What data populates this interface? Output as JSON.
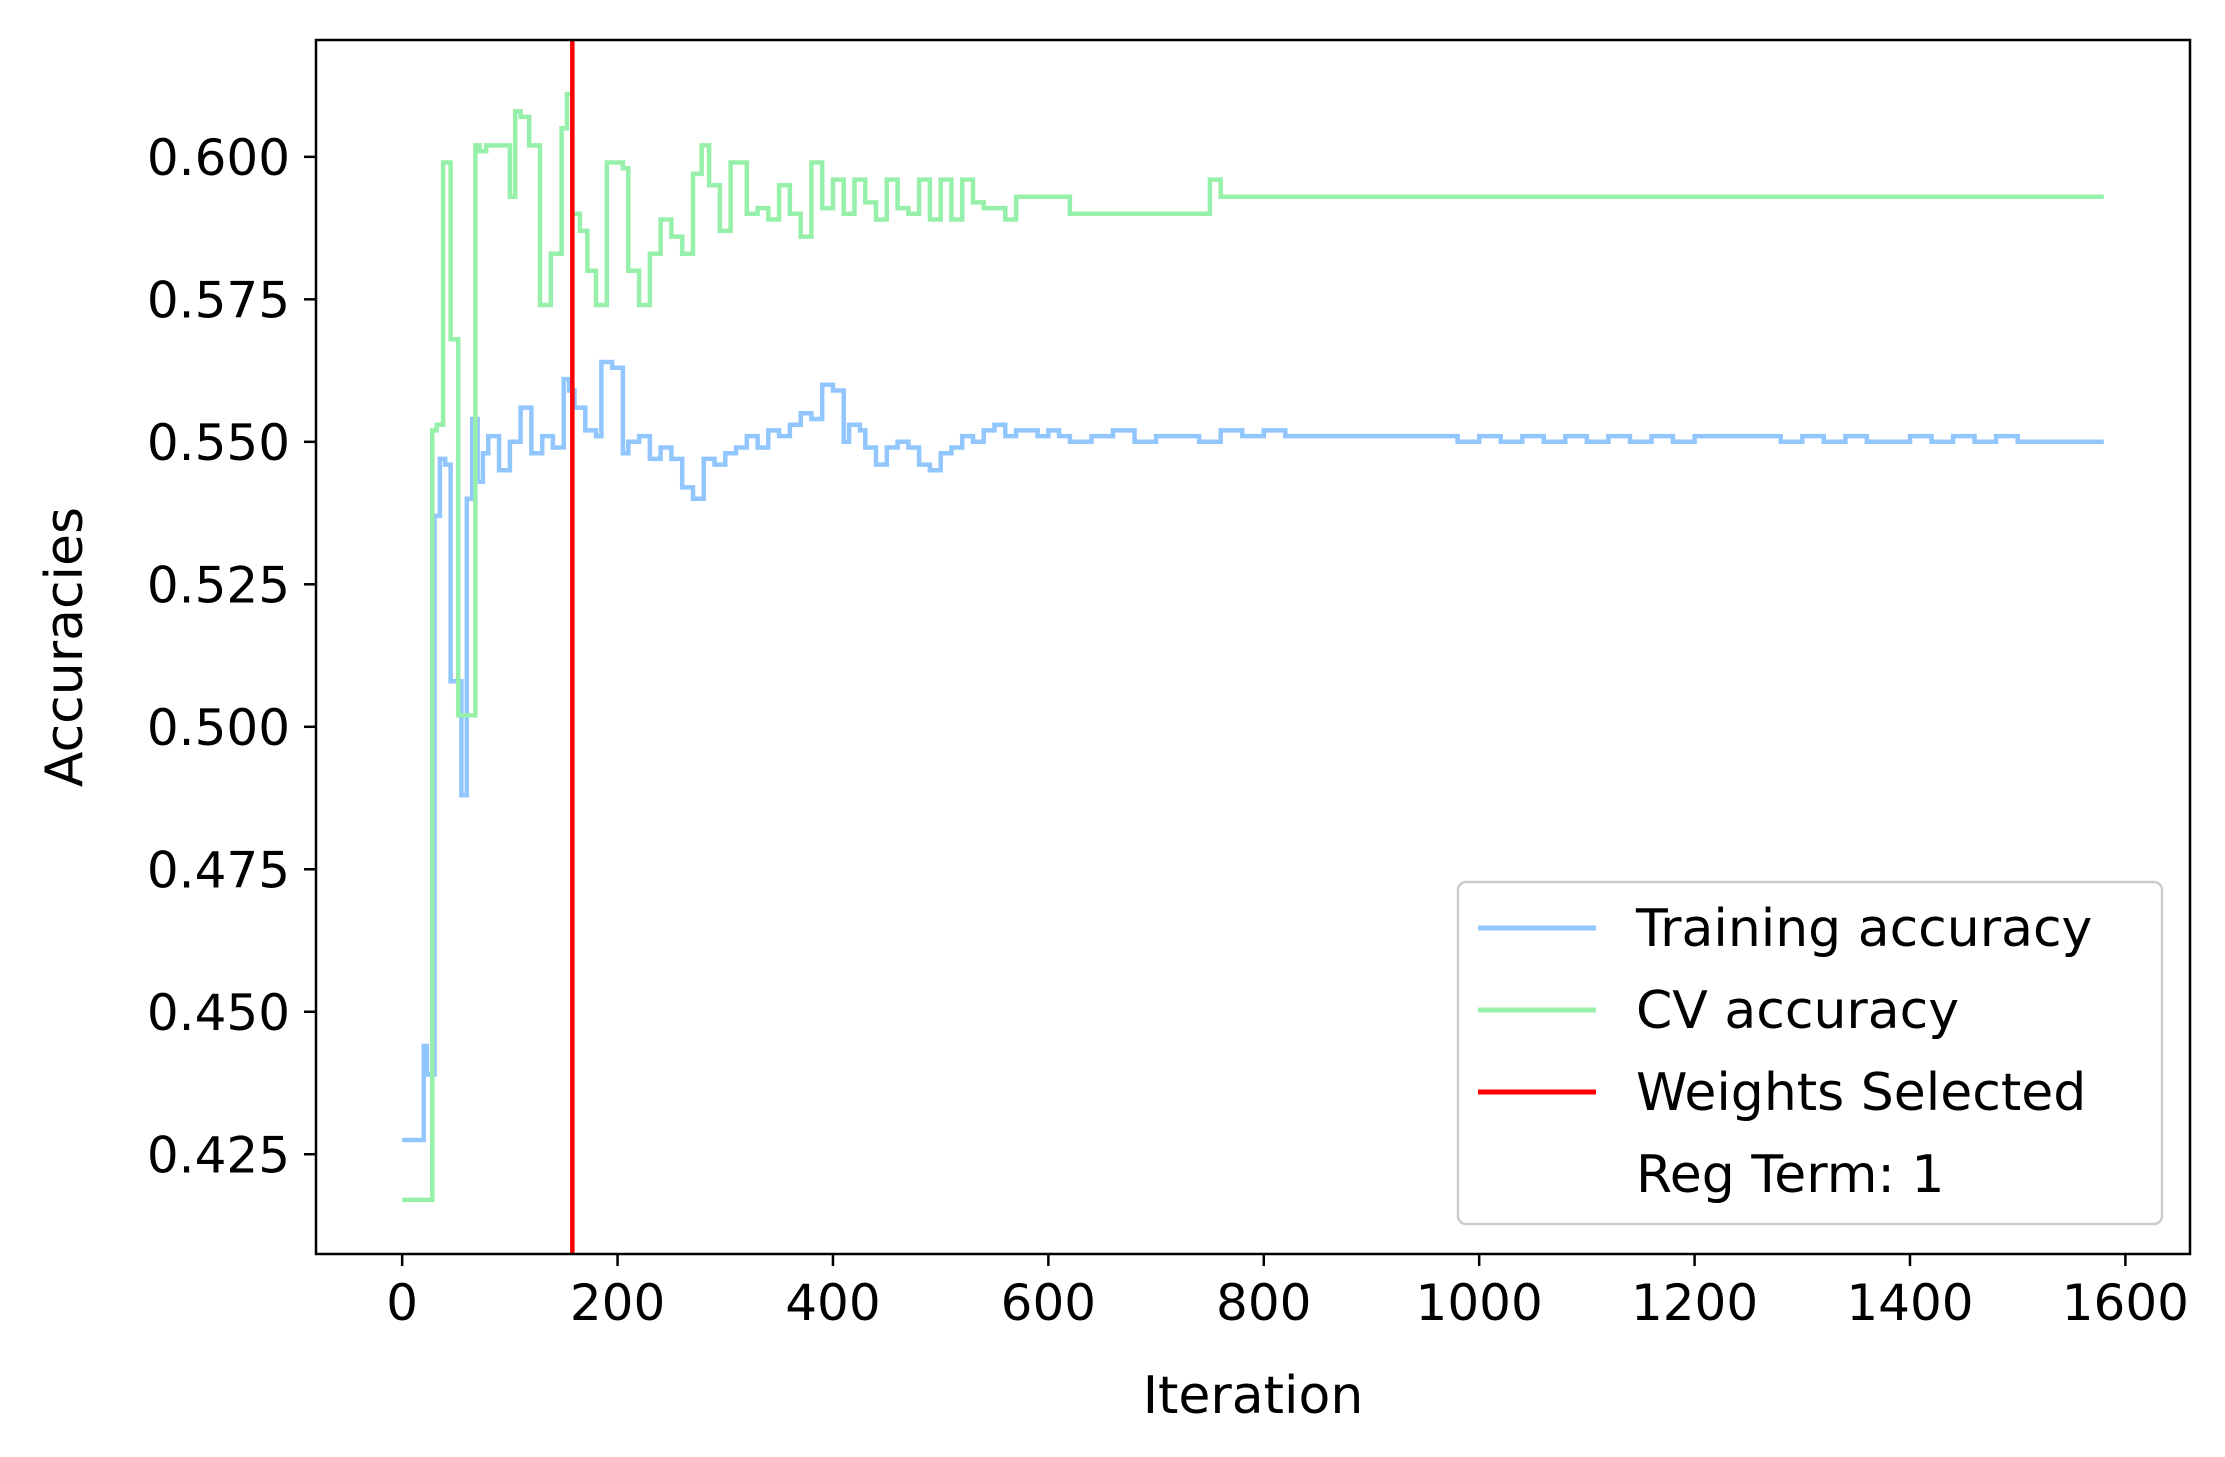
{
  "chart_data": {
    "type": "line",
    "xlabel": "Iteration",
    "ylabel": "Accuracies",
    "xlim": [
      -80,
      1660
    ],
    "ylim": [
      0.4075,
      0.6205
    ],
    "xticks": [
      0,
      200,
      400,
      600,
      800,
      1000,
      1200,
      1400,
      1600
    ],
    "xtick_labels": [
      "0",
      "200",
      "400",
      "600",
      "800",
      "1000",
      "1200",
      "1400",
      "1600"
    ],
    "yticks": [
      0.425,
      0.45,
      0.475,
      0.5,
      0.525,
      0.55,
      0.575,
      0.6
    ],
    "ytick_labels": [
      "0.425",
      "0.450",
      "0.475",
      "0.500",
      "0.525",
      "0.550",
      "0.575",
      "0.600"
    ],
    "grid": false,
    "legend_position": "lower-right",
    "series": [
      {
        "name": "Training accuracy",
        "color": "#92c6ff",
        "step": true,
        "x": [
          0,
          20,
          23,
          30,
          35,
          40,
          45,
          55,
          60,
          65,
          70,
          75,
          80,
          90,
          100,
          110,
          120,
          130,
          140,
          150,
          155,
          160,
          170,
          180,
          185,
          195,
          205,
          210,
          220,
          230,
          240,
          250,
          260,
          270,
          280,
          290,
          300,
          310,
          320,
          330,
          340,
          350,
          360,
          370,
          380,
          390,
          400,
          410,
          415,
          425,
          430,
          440,
          450,
          460,
          470,
          480,
          490,
          500,
          510,
          520,
          530,
          540,
          550,
          560,
          570,
          580,
          590,
          600,
          610,
          620,
          640,
          660,
          680,
          700,
          720,
          740,
          760,
          780,
          800,
          820,
          860,
          880,
          980,
          1000,
          1020,
          1040,
          1060,
          1080,
          1100,
          1120,
          1140,
          1160,
          1180,
          1200,
          1260,
          1280,
          1300,
          1320,
          1340,
          1360,
          1400,
          1420,
          1440,
          1460,
          1480,
          1500,
          1520,
          1580
        ],
        "y": [
          0.4275,
          0.444,
          0.439,
          0.537,
          0.547,
          0.546,
          0.508,
          0.488,
          0.54,
          0.554,
          0.543,
          0.548,
          0.551,
          0.545,
          0.55,
          0.556,
          0.548,
          0.551,
          0.549,
          0.561,
          0.559,
          0.556,
          0.552,
          0.551,
          0.564,
          0.563,
          0.548,
          0.55,
          0.551,
          0.547,
          0.549,
          0.547,
          0.542,
          0.54,
          0.547,
          0.546,
          0.548,
          0.549,
          0.551,
          0.549,
          0.552,
          0.551,
          0.553,
          0.555,
          0.554,
          0.56,
          0.559,
          0.55,
          0.553,
          0.552,
          0.549,
          0.546,
          0.549,
          0.55,
          0.549,
          0.546,
          0.545,
          0.548,
          0.549,
          0.551,
          0.55,
          0.552,
          0.553,
          0.551,
          0.552,
          0.552,
          0.551,
          0.552,
          0.551,
          0.55,
          0.551,
          0.552,
          0.55,
          0.551,
          0.551,
          0.55,
          0.552,
          0.551,
          0.552,
          0.551,
          0.551,
          0.551,
          0.55,
          0.551,
          0.55,
          0.551,
          0.55,
          0.551,
          0.55,
          0.551,
          0.55,
          0.551,
          0.55,
          0.551,
          0.551,
          0.55,
          0.551,
          0.55,
          0.551,
          0.55,
          0.551,
          0.55,
          0.551,
          0.55,
          0.551,
          0.55,
          0.55,
          0.55
        ]
      },
      {
        "name": "CV accuracy",
        "color": "#97f0aa",
        "step": true,
        "x": [
          0,
          20,
          28,
          32,
          38,
          45,
          52,
          62,
          68,
          72,
          78,
          90,
          100,
          105,
          110,
          118,
          128,
          138,
          148,
          153,
          158,
          165,
          172,
          180,
          190,
          200,
          205,
          210,
          220,
          230,
          240,
          250,
          260,
          270,
          278,
          285,
          295,
          305,
          320,
          330,
          340,
          350,
          360,
          370,
          380,
          390,
          400,
          410,
          420,
          430,
          440,
          450,
          460,
          470,
          480,
          490,
          500,
          510,
          520,
          530,
          540,
          560,
          570,
          600,
          620,
          750,
          760,
          1580
        ],
        "y": [
          0.417,
          0.417,
          0.552,
          0.553,
          0.599,
          0.568,
          0.502,
          0.502,
          0.602,
          0.601,
          0.602,
          0.602,
          0.593,
          0.608,
          0.607,
          0.602,
          0.574,
          0.583,
          0.605,
          0.611,
          0.59,
          0.587,
          0.58,
          0.574,
          0.599,
          0.599,
          0.598,
          0.58,
          0.574,
          0.583,
          0.589,
          0.586,
          0.583,
          0.597,
          0.602,
          0.595,
          0.587,
          0.599,
          0.59,
          0.591,
          0.589,
          0.595,
          0.59,
          0.586,
          0.599,
          0.591,
          0.596,
          0.59,
          0.596,
          0.592,
          0.589,
          0.596,
          0.591,
          0.59,
          0.596,
          0.589,
          0.596,
          0.589,
          0.596,
          0.592,
          0.591,
          0.589,
          0.593,
          0.593,
          0.59,
          0.596,
          0.593,
          0.593
        ]
      }
    ],
    "vertical_line": {
      "name": "Weights Selected",
      "x": 158,
      "color": "#ff0000"
    },
    "legend": [
      {
        "label": "Training accuracy",
        "color": "#92c6ff",
        "marker": "line"
      },
      {
        "label": "CV accuracy",
        "color": "#97f0aa",
        "marker": "line"
      },
      {
        "label": "Weights Selected",
        "color": "#ff0000",
        "marker": "line"
      },
      {
        "label": "Reg Term: 1",
        "color": "#ffffff",
        "marker": "none"
      }
    ]
  }
}
